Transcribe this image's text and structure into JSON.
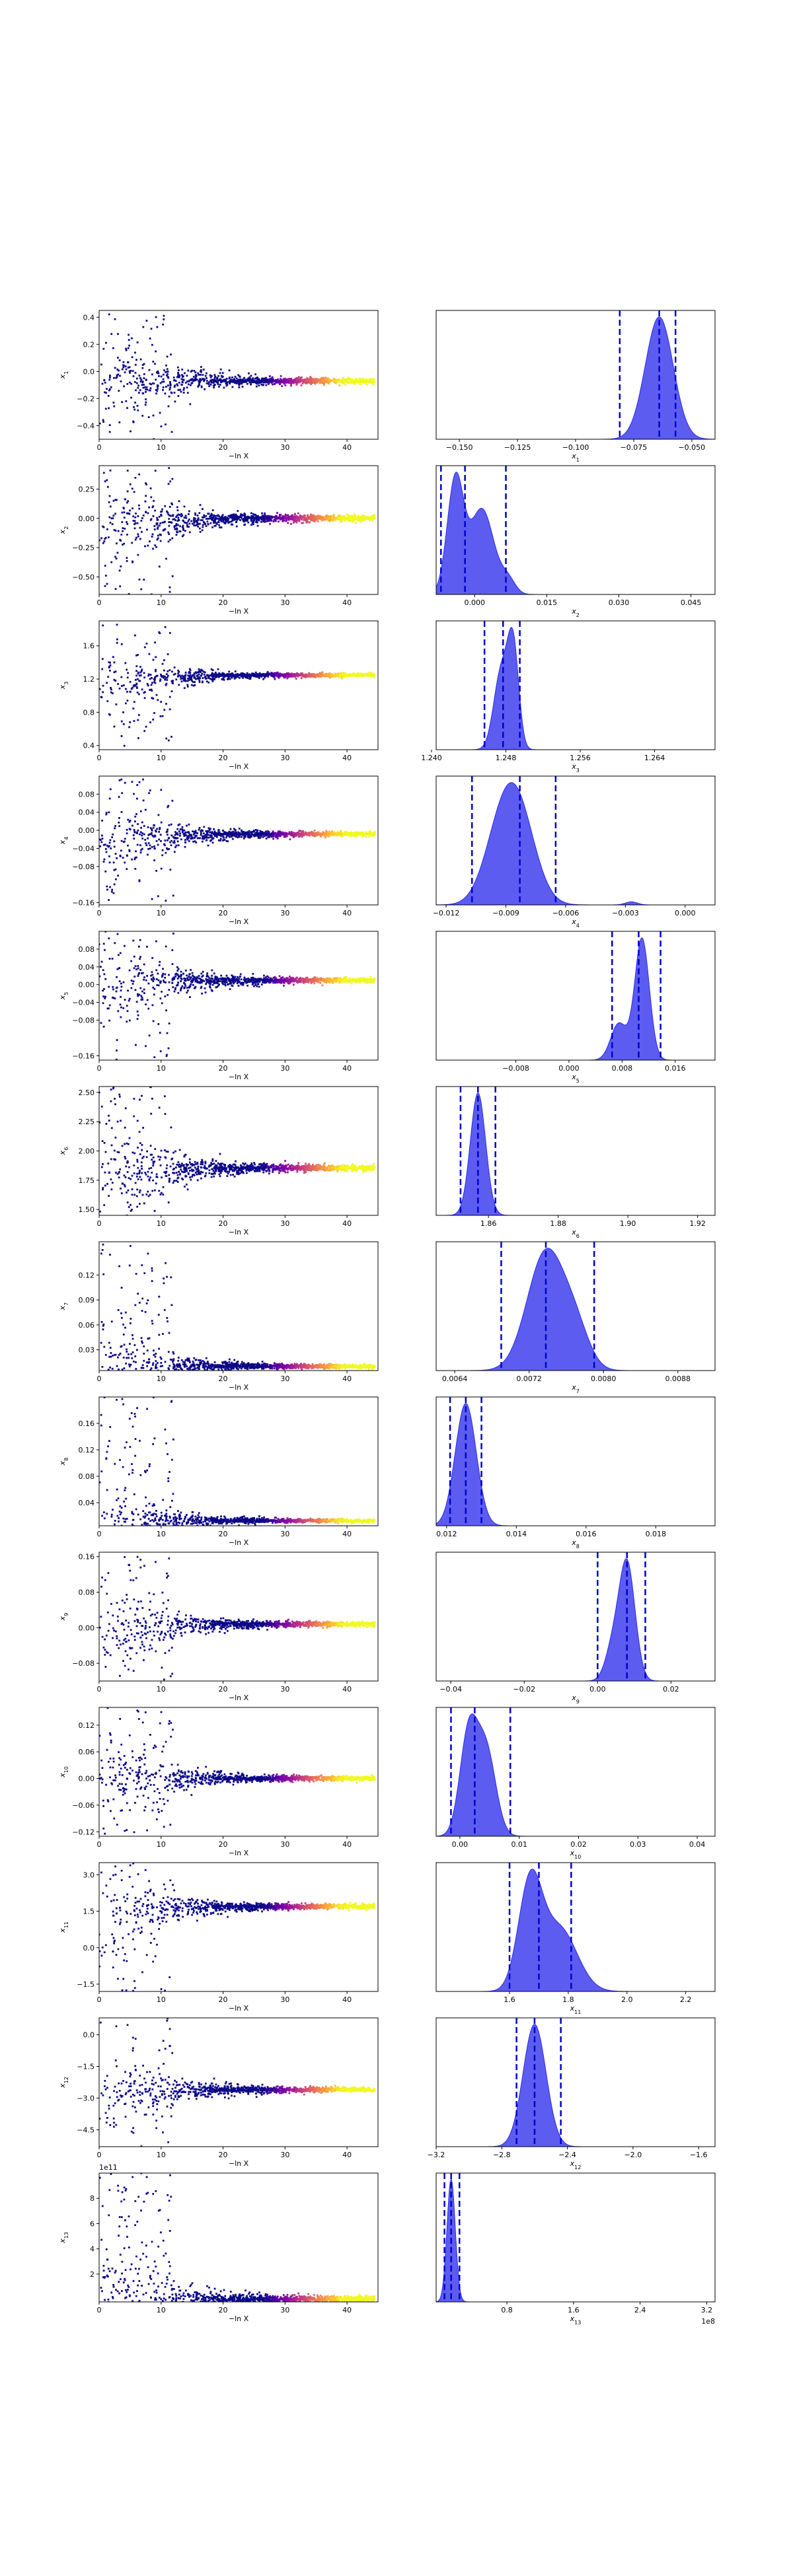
{
  "chart_data": {
    "type": "scatter",
    "layout": "13 rows x 2 columns: left = samples vs -ln X, right = marginal posterior density with dashed credible-interval lines",
    "colors": {
      "trace_low": "#0d0887",
      "trace_mid": "#cc4778",
      "trace_high": "#f0f921",
      "kde_fill": "#4a4af0",
      "kde_edge": "#2a2aee",
      "interval_line": "#0000cc"
    },
    "trace_xlabel": "−ln X",
    "trace_xlim": [
      0,
      45
    ],
    "trace_xticks": [
      "0",
      "10",
      "20",
      "30",
      "40"
    ],
    "rows": [
      {
        "ylabel": "x1",
        "trace": {
          "ylim": [
            -0.5,
            0.45
          ],
          "yticks": [
            "0.4",
            "0.2",
            "0.0",
            "−0.2",
            "−0.4"
          ],
          "ytick_values": [
            0.4,
            0.2,
            0.0,
            -0.2,
            -0.4
          ],
          "converge": -0.07,
          "spread": 0.25,
          "arms": [
            0.0,
            -0.08
          ]
        },
        "post": {
          "xlabel": "x1",
          "xlim": [
            -0.16,
            -0.04
          ],
          "xticks": [
            "−0.150",
            "−0.125",
            "−0.100",
            "−0.075",
            "−0.050"
          ],
          "xtick_values": [
            -0.15,
            -0.125,
            -0.1,
            -0.075,
            -0.05
          ],
          "peaks": [
            [
              -0.064,
              0.006,
              1.0
            ]
          ],
          "lines": [
            -0.081,
            -0.064,
            -0.057
          ]
        }
      },
      {
        "ylabel": "x2",
        "trace": {
          "ylim": [
            -0.65,
            0.45
          ],
          "yticks": [
            "0.25",
            "0.00",
            "−0.25",
            "−0.50"
          ],
          "ytick_values": [
            0.25,
            0.0,
            -0.25,
            -0.5
          ],
          "converge": 0.002,
          "spread": 0.3,
          "arms": [
            0.0,
            -0.13
          ]
        },
        "post": {
          "xlabel": "x2",
          "xlim": [
            -0.008,
            0.05
          ],
          "xticks": [
            "0.000",
            "0.015",
            "0.030",
            "0.045"
          ],
          "xtick_values": [
            0.0,
            0.015,
            0.03,
            0.045
          ],
          "peaks": [
            [
              -0.004,
              0.0017,
              1.0
            ],
            [
              0.0015,
              0.0025,
              0.75
            ],
            [
              0.007,
              0.0015,
              0.12
            ]
          ],
          "lines": [
            -0.007,
            -0.002,
            0.0065
          ]
        }
      },
      {
        "ylabel": "x3",
        "trace": {
          "ylim": [
            0.35,
            1.9
          ],
          "yticks": [
            "1.6",
            "1.2",
            "0.8",
            "0.4"
          ],
          "ytick_values": [
            1.6,
            1.2,
            0.8,
            0.4
          ],
          "converge": 1.248,
          "spread": 0.25,
          "arms": [
            1.248,
            1.12
          ]
        },
        "post": {
          "xlabel": "x3",
          "xlim": [
            1.2405,
            1.2705
          ],
          "xticks": [
            "1.240",
            "1.248",
            "1.256",
            "1.264"
          ],
          "xtick_values": [
            1.24,
            1.248,
            1.256,
            1.264
          ],
          "peaks": [
            [
              1.2475,
              0.0008,
              0.8
            ],
            [
              1.2488,
              0.0006,
              1.0
            ]
          ],
          "lines": [
            1.2457,
            1.2477,
            1.2495
          ]
        }
      },
      {
        "ylabel": "x4",
        "trace": {
          "ylim": [
            -0.165,
            0.12
          ],
          "yticks": [
            "0.08",
            "0.04",
            "0.00",
            "−0.04",
            "−0.08",
            "−0.16"
          ],
          "ytick_values": [
            0.08,
            0.04,
            0.0,
            -0.04,
            -0.08,
            -0.16
          ],
          "converge": -0.008,
          "spread": 0.06,
          "arms": [
            -0.008,
            -0.03
          ]
        },
        "post": {
          "xlabel": "x4",
          "xlim": [
            -0.0125,
            0.0015
          ],
          "xticks": [
            "−0.012",
            "−0.009",
            "−0.006",
            "−0.003",
            "0.000"
          ],
          "xtick_values": [
            -0.012,
            -0.009,
            -0.006,
            -0.003,
            0.0
          ],
          "peaks": [
            [
              -0.0085,
              0.0009,
              1.0
            ],
            [
              -0.0095,
              0.0008,
              0.35
            ],
            [
              -0.0027,
              0.0003,
              0.03
            ]
          ],
          "lines": [
            -0.0107,
            -0.0083,
            -0.0065
          ]
        }
      },
      {
        "ylabel": "x5",
        "trace": {
          "ylim": [
            -0.17,
            0.12
          ],
          "yticks": [
            "0.08",
            "0.04",
            "0.00",
            "−0.04",
            "−0.08",
            "−0.16"
          ],
          "ytick_values": [
            0.08,
            0.04,
            0.0,
            -0.04,
            -0.08,
            -0.16
          ],
          "converge": 0.01,
          "spread": 0.07,
          "arms": [
            0.015,
            -0.01
          ]
        },
        "post": {
          "xlabel": "x5",
          "xlim": [
            -0.02,
            0.022
          ],
          "xticks": [
            "−0.008",
            "0.000",
            "0.008",
            "0.016"
          ],
          "xtick_values": [
            -0.008,
            0.0,
            0.008,
            0.016
          ],
          "peaks": [
            [
              0.011,
              0.0011,
              1.0
            ],
            [
              0.0075,
              0.0012,
              0.3
            ]
          ],
          "lines": [
            0.0065,
            0.0105,
            0.0138
          ]
        }
      },
      {
        "ylabel": "x6",
        "trace": {
          "ylim": [
            1.45,
            2.55
          ],
          "yticks": [
            "2.50",
            "2.25",
            "2.00",
            "1.75",
            "1.50"
          ],
          "ytick_values": [
            2.5,
            2.25,
            2.0,
            1.75,
            1.5
          ],
          "converge": 1.855,
          "spread": 0.3,
          "arms": [
            1.9,
            1.75
          ]
        },
        "post": {
          "xlabel": "x6",
          "xlim": [
            1.845,
            1.925
          ],
          "xticks": [
            "1.86",
            "1.88",
            "1.90",
            "1.92"
          ],
          "xtick_values": [
            1.86,
            1.88,
            1.9,
            1.92
          ],
          "peaks": [
            [
              1.857,
              0.0022,
              1.0
            ]
          ],
          "lines": [
            1.852,
            1.857,
            1.862
          ]
        }
      },
      {
        "ylabel": "x7",
        "trace": {
          "ylim": [
            0.005,
            0.16
          ],
          "yticks": [
            "0.12",
            "0.09",
            "0.06",
            "0.03"
          ],
          "ytick_values": [
            0.12,
            0.09,
            0.06,
            0.03
          ],
          "converge": 0.01,
          "spread": 0.03,
          "arms": [
            0.012,
            0.02
          ]
        },
        "post": {
          "xlabel": "x7",
          "xlim": [
            0.0062,
            0.0092
          ],
          "xticks": [
            "0.0064",
            "0.0072",
            "0.0080",
            "0.0088"
          ],
          "xtick_values": [
            0.0064,
            0.0072,
            0.008,
            0.0088
          ],
          "peaks": [
            [
              0.00738,
              0.0002,
              1.0
            ],
            [
              0.0077,
              0.00015,
              0.3
            ]
          ],
          "lines": [
            0.0069,
            0.00738,
            0.0079
          ]
        }
      },
      {
        "ylabel": "x8",
        "trace": {
          "ylim": [
            0.005,
            0.2
          ],
          "yticks": [
            "0.16",
            "0.12",
            "0.08",
            "0.04"
          ],
          "ytick_values": [
            0.16,
            0.12,
            0.08,
            0.04
          ],
          "converge": 0.0125,
          "spread": 0.03,
          "arms": [
            0.012,
            0.02
          ]
        },
        "post": {
          "xlabel": "x8",
          "xlim": [
            0.0117,
            0.0197
          ],
          "xticks": [
            "0.012",
            "0.014",
            "0.016",
            "0.018"
          ],
          "xtick_values": [
            0.012,
            0.014,
            0.016,
            0.018
          ],
          "peaks": [
            [
              0.01255,
              0.0003,
              1.0
            ]
          ],
          "lines": [
            0.0121,
            0.01255,
            0.013
          ]
        }
      },
      {
        "ylabel": "x9",
        "trace": {
          "ylim": [
            -0.12,
            0.17
          ],
          "yticks": [
            "0.16",
            "0.08",
            "0.00",
            "−0.08"
          ],
          "ytick_values": [
            0.16,
            0.08,
            0.0,
            -0.08
          ],
          "converge": 0.008,
          "spread": 0.06,
          "arms": [
            0.02,
            -0.02
          ]
        },
        "post": {
          "xlabel": "x9",
          "xlim": [
            -0.044,
            0.032
          ],
          "xticks": [
            "−0.04",
            "−0.02",
            "0.00",
            "0.02"
          ],
          "xtick_values": [
            -0.04,
            -0.02,
            0.0,
            0.02
          ],
          "peaks": [
            [
              0.008,
              0.0022,
              1.0
            ],
            [
              0.004,
              0.002,
              0.25
            ]
          ],
          "lines": [
            0.0,
            0.008,
            0.013
          ]
        }
      },
      {
        "ylabel": "x10",
        "trace": {
          "ylim": [
            -0.13,
            0.16
          ],
          "yticks": [
            "0.12",
            "0.06",
            "0.00",
            "−0.06",
            "−0.12"
          ],
          "ytick_values": [
            0.12,
            0.06,
            0.0,
            -0.06,
            -0.12
          ],
          "converge": 0.0,
          "spread": 0.06,
          "arms": [
            0.02,
            -0.02
          ]
        },
        "post": {
          "xlabel": "x10",
          "xlim": [
            -0.004,
            0.043
          ],
          "xticks": [
            "0.00",
            "0.01",
            "0.02",
            "0.03",
            "0.04"
          ],
          "xtick_values": [
            0.0,
            0.01,
            0.02,
            0.03,
            0.04
          ],
          "peaks": [
            [
              0.0015,
              0.0015,
              1.0
            ],
            [
              0.0045,
              0.0016,
              0.8
            ]
          ],
          "lines": [
            -0.0015,
            0.0025,
            0.0085
          ]
        }
      },
      {
        "ylabel": "x11",
        "trace": {
          "ylim": [
            -1.8,
            3.5
          ],
          "yticks": [
            "3.0",
            "1.5",
            "0.0",
            "−1.5"
          ],
          "ytick_values": [
            3.0,
            1.5,
            0.0,
            -1.5
          ],
          "converge": 1.7,
          "spread": 1.2,
          "arms": [
            1.7,
            1.3
          ]
        },
        "post": {
          "xlabel": "x11",
          "xlim": [
            1.35,
            2.3
          ],
          "xticks": [
            "1.6",
            "1.8",
            "2.0",
            "2.2"
          ],
          "xtick_values": [
            1.6,
            1.8,
            2.0,
            2.2
          ],
          "peaks": [
            [
              1.67,
              0.04,
              1.0
            ],
            [
              1.77,
              0.06,
              0.6
            ]
          ],
          "lines": [
            1.6,
            1.7,
            1.81
          ]
        }
      },
      {
        "ylabel": "x12",
        "trace": {
          "ylim": [
            -5.3,
            0.8
          ],
          "yticks": [
            "0.0",
            "−1.5",
            "−3.0",
            "−4.5"
          ],
          "ytick_values": [
            0.0,
            -1.5,
            -3.0,
            -4.5
          ],
          "converge": -2.6,
          "spread": 1.3,
          "arms": [
            -2.5,
            -2.9
          ]
        },
        "post": {
          "xlabel": "x12",
          "xlim": [
            -3.2,
            -1.5
          ],
          "xticks": [
            "−3.2",
            "−2.8",
            "−2.4",
            "−2.0",
            "−1.6"
          ],
          "xtick_values": [
            -3.2,
            -2.8,
            -2.4,
            -2.0,
            -1.6
          ],
          "peaks": [
            [
              -2.6,
              0.07,
              1.0
            ]
          ],
          "lines": [
            -2.71,
            -2.6,
            -2.44
          ]
        }
      },
      {
        "ylabel": "x13",
        "trace": {
          "ylim": [
            -0.2,
            10.0
          ],
          "yticks": [
            "8",
            "6",
            "4",
            "2"
          ],
          "ytick_values": [
            8,
            6,
            4,
            2
          ],
          "converge": 0.02,
          "spread": 3.0,
          "arms": [
            0.02,
            0.02
          ],
          "offset": "1e11"
        },
        "post": {
          "xlabel": "x13",
          "xlim": [
            -0.05,
            3.3
          ],
          "xticks": [
            "0.8",
            "1.6",
            "2.4",
            "3.2"
          ],
          "xtick_values": [
            0.8,
            1.6,
            2.4,
            3.2
          ],
          "offset": "1e8",
          "peaks": [
            [
              0.13,
              0.05,
              1.0
            ]
          ],
          "lines": [
            0.05,
            0.13,
            0.23
          ]
        }
      }
    ]
  }
}
